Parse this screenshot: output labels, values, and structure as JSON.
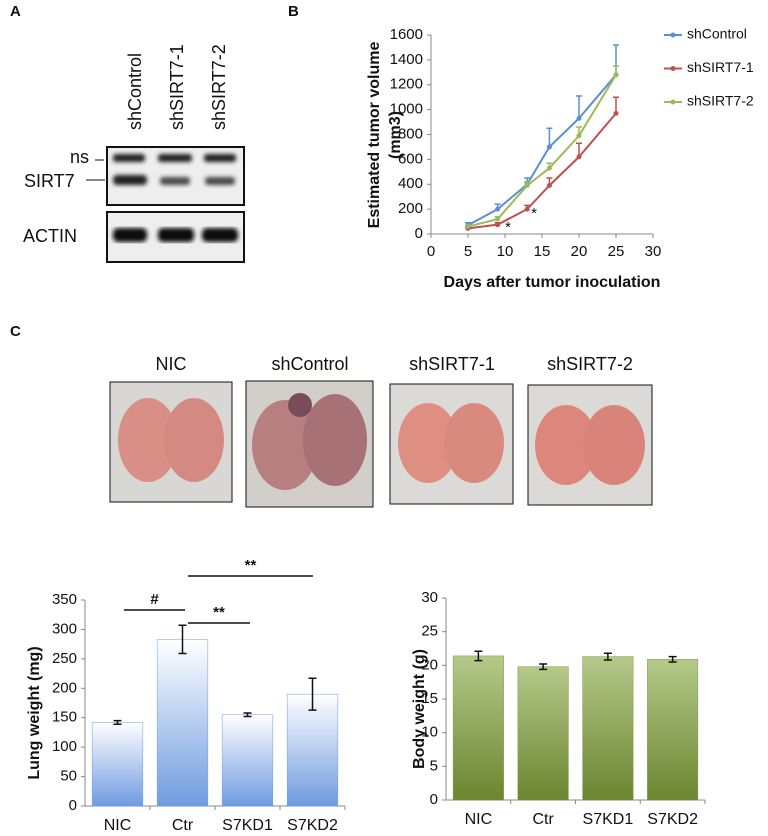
{
  "panel_labels": [
    "A",
    "B",
    "C"
  ],
  "blot": {
    "lanes": [
      "shControl",
      "shSIRT7-1",
      "shSIRT7-2"
    ],
    "bands": [
      "ns",
      "SIRT7",
      "ACTIN"
    ]
  },
  "photos": {
    "labels": [
      "NIC",
      "shControl",
      "shSIRT7-1",
      "shSIRT7-2"
    ]
  },
  "chart_data": [
    {
      "type": "line",
      "xlabel": "Days after tumor inoculation",
      "ylabel": [
        "Estimated tumor volume",
        "(mm3)"
      ],
      "x": [
        5,
        9,
        13,
        16,
        20,
        25
      ],
      "series": [
        {
          "name": "shControl",
          "color": "#5b8ed6",
          "values": [
            70,
            200,
            400,
            700,
            930,
            1280
          ],
          "errors": [
            20,
            40,
            50,
            150,
            180,
            240
          ]
        },
        {
          "name": "shSIRT7-1",
          "color": "#c0504d",
          "values": [
            45,
            75,
            200,
            390,
            620,
            970
          ],
          "errors": [
            10,
            15,
            30,
            60,
            110,
            130
          ]
        },
        {
          "name": "shSIRT7-2",
          "color": "#9bbb59",
          "values": [
            60,
            120,
            390,
            530,
            790,
            1280
          ],
          "errors": [
            10,
            20,
            30,
            40,
            70,
            70
          ]
        }
      ],
      "xlim": [
        0,
        30
      ],
      "xticks": [
        0,
        5,
        10,
        15,
        20,
        25,
        30
      ],
      "ylim": [
        0,
        1600
      ],
      "yticks": [
        0,
        200,
        400,
        600,
        800,
        1000,
        1200,
        1400,
        1600
      ],
      "legend": "right",
      "annotations": [
        "*",
        "*"
      ]
    },
    {
      "type": "bar",
      "ylabel": "Lung weight (mg)",
      "categories": [
        "NIC",
        "Ctr",
        "S7KD1",
        "S7KD2"
      ],
      "values": [
        142,
        283,
        155,
        190
      ],
      "errors": [
        3,
        24,
        3,
        27
      ],
      "color": "#6f9be0",
      "ylim": [
        0,
        350
      ],
      "yticks": [
        0,
        50,
        100,
        150,
        200,
        250,
        300,
        350
      ],
      "annotations": [
        "#",
        "**",
        "**"
      ]
    },
    {
      "type": "bar",
      "ylabel": "Body weight (g)",
      "categories": [
        "NIC",
        "Ctr",
        "S7KD1",
        "S7KD2"
      ],
      "values": [
        21.4,
        19.8,
        21.3,
        20.9
      ],
      "errors": [
        0.7,
        0.4,
        0.5,
        0.4
      ],
      "color": "#7f9a3f",
      "ylim": [
        0,
        30
      ],
      "yticks": [
        0,
        5,
        10,
        15,
        20,
        25,
        30
      ]
    }
  ]
}
